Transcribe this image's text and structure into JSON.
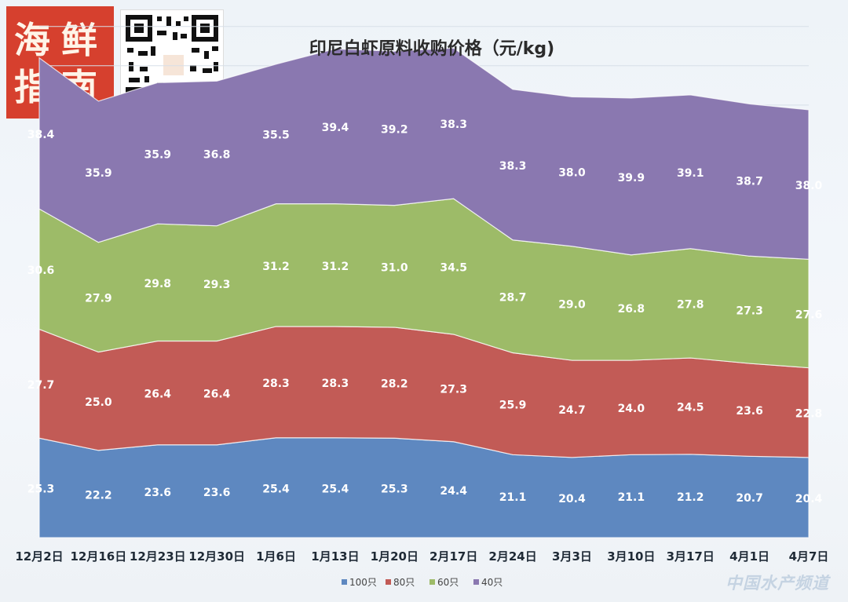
{
  "header": {
    "logo_text": "海鲜指南",
    "watermark": "中国水产频道"
  },
  "chart_data": {
    "type": "area",
    "stacked": true,
    "title": "印尼白虾原料收购价格（元/kg)",
    "xlabel": "",
    "ylabel": "",
    "categories": [
      "12月2日",
      "12月16日",
      "12月23日",
      "12月30日",
      "1月6日",
      "1月13日",
      "1月20日",
      "2月17日",
      "2月24日",
      "3月3日",
      "3月10日",
      "3月17日",
      "4月1日",
      "4月7日"
    ],
    "series": [
      {
        "name": "100只",
        "color": "#5e88c0",
        "values": [
          25.3,
          22.2,
          23.6,
          23.6,
          25.4,
          25.4,
          25.3,
          24.4,
          21.1,
          20.4,
          21.1,
          21.2,
          20.7,
          20.4
        ]
      },
      {
        "name": "80只",
        "color": "#c25b56",
        "values": [
          27.7,
          25.0,
          26.4,
          26.4,
          28.3,
          28.3,
          28.2,
          27.3,
          25.9,
          24.7,
          24.0,
          24.5,
          23.6,
          22.8
        ]
      },
      {
        "name": "60只",
        "color": "#9dbb68",
        "values": [
          30.6,
          27.9,
          29.8,
          29.3,
          31.2,
          31.2,
          31.0,
          34.5,
          28.7,
          29.0,
          26.8,
          27.8,
          27.3,
          27.6
        ]
      },
      {
        "name": "40只",
        "color": "#8a78b0",
        "values": [
          38.4,
          35.9,
          35.9,
          36.8,
          35.5,
          39.4,
          39.2,
          38.3,
          38.3,
          38.0,
          39.9,
          39.1,
          38.7,
          38.0
        ]
      }
    ],
    "data_labels": true,
    "legend": "bottom",
    "grid": true
  }
}
